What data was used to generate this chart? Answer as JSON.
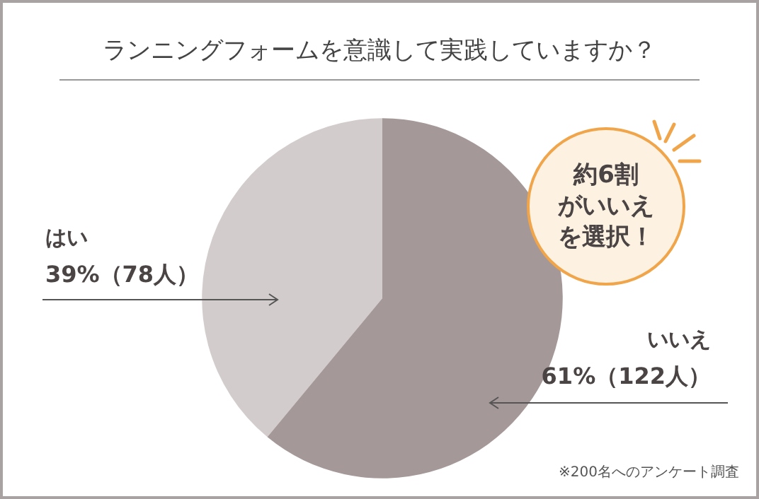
{
  "chart_data": {
    "type": "pie",
    "title": "ランニングフォームを意識して実践していますか？",
    "categories": [
      "はい",
      "いいえ"
    ],
    "values": [
      39,
      61
    ],
    "value_labels": [
      "39%（78人）",
      "61%（122人）"
    ],
    "colors": [
      "#d3cccc",
      "#a59898"
    ],
    "annotations": [
      "約6割",
      "がいいえ",
      "を選択！",
      "※200名へのアンケート調査"
    ]
  }
}
